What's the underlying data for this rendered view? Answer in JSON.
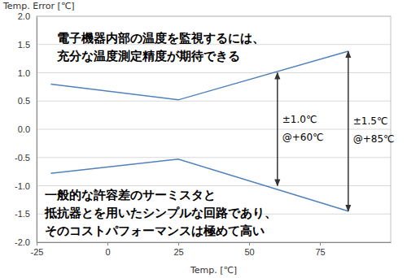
{
  "chart_data": {
    "type": "line",
    "x_label": "Temp. [℃]",
    "y_label": "Temp. Error [℃]",
    "x": [
      -20,
      25,
      85
    ],
    "series": [
      {
        "color": "#4f81bd",
        "values": [
          0.8,
          0.52,
          1.38
        ]
      },
      {
        "color": "#4f81bd",
        "values": [
          -0.78,
          -0.53,
          -1.45
        ]
      }
    ],
    "xlim": [
      -25,
      100
    ],
    "xticks": [
      -25,
      0,
      25,
      50,
      75
    ],
    "ylim": [
      -2,
      2
    ],
    "yticks": [
      {
        "value": -2,
        "label": "-2.0"
      },
      -1.5,
      {
        "value": -1,
        "label": "-1.0"
      },
      -0.5,
      {
        "value": 0,
        "label": "0.0"
      },
      0.5,
      {
        "value": 1,
        "label": "1.0"
      },
      1.5,
      {
        "value": 2,
        "label": "2.0"
      }
    ],
    "grid": true,
    "annotations": [
      {
        "text": [
          "電子機器内部の温度を監視するには、",
          "充分な温度測定精度が期待できる"
        ]
      },
      {
        "text": [
          "一般的な許容差のサーミスタと",
          "抵抗器とを用いたシンプルな回路であり、",
          "そのコストパフォーマンスは極めて高い"
        ]
      },
      {
        "text": [
          "±1.0℃",
          "@+60℃"
        ],
        "x": 60,
        "y": [
          -1,
          1
        ]
      },
      {
        "text": [
          "±1.5℃",
          "@+85℃"
        ],
        "x": 85,
        "y": [
          -1.45,
          1.38
        ]
      }
    ]
  }
}
